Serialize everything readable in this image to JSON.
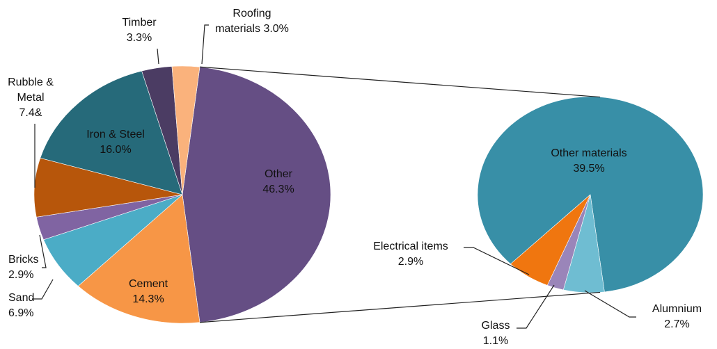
{
  "chart_data": [
    {
      "type": "pie",
      "categories": [
        "Other",
        "Cement",
        "Sand",
        "Bricks",
        "Rubble & Metal",
        "Iron & Steel",
        "Timber",
        "Roofing materials"
      ],
      "values": [
        46.3,
        14.3,
        6.9,
        2.9,
        7.4,
        16.0,
        3.3,
        3.0
      ],
      "value_labels": [
        "46.3%",
        "14.3%",
        "6.9%",
        "2.9%",
        "7.4&",
        "16.0%",
        "3.3%",
        "3.0%"
      ],
      "colors": [
        "#654e84",
        "#f79646",
        "#4bacc6",
        "#8064a2",
        "#b7560b",
        "#266a7a",
        "#4b3c63",
        "#fab27c"
      ]
    },
    {
      "type": "pie",
      "categories": [
        "Other materials",
        "Alumnium",
        "Glass",
        "Electrical items"
      ],
      "values": [
        39.5,
        2.7,
        1.1,
        2.9
      ],
      "value_labels": [
        "39.5%",
        "2.7%",
        "1.1%",
        "2.9%"
      ],
      "colors": [
        "#388fa7",
        "#6fbdd2",
        "#9a85b9",
        "#f0760f"
      ]
    }
  ]
}
